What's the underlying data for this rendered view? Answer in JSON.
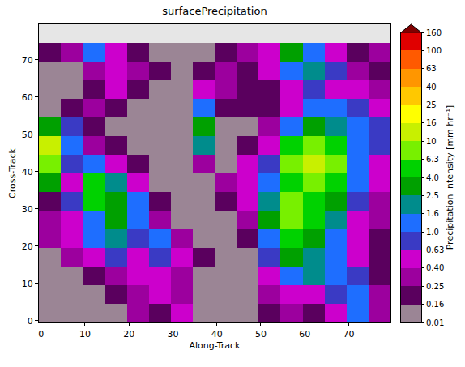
{
  "chart_data": {
    "type": "heatmap",
    "title": "surfacePrecipitation",
    "x_label": "Along-Track",
    "y_label": "Cross-Track",
    "x": [
      2,
      7,
      12,
      17,
      22,
      27,
      32,
      37,
      42,
      47,
      52,
      57,
      62,
      67,
      72,
      77
    ],
    "y": [
      2,
      7,
      12,
      17,
      22,
      27,
      32,
      37,
      42,
      47,
      52,
      57,
      62,
      67,
      72
    ],
    "z": [
      [
        0.05,
        0.05,
        0.05,
        0.05,
        0.3,
        0.2,
        0.5,
        0.05,
        0.05,
        0.05,
        0.2,
        0.3,
        0.2,
        0.5,
        1.2,
        0.3
      ],
      [
        0.05,
        0.05,
        0.05,
        0.2,
        0.3,
        0.5,
        0.3,
        0.05,
        0.05,
        0.05,
        0.3,
        0.5,
        0.5,
        0.8,
        1.2,
        0.3
      ],
      [
        0.05,
        0.05,
        0.2,
        0.3,
        0.5,
        0.5,
        0.3,
        0.05,
        0.05,
        0.05,
        0.5,
        1.2,
        2,
        1.2,
        0.8,
        0.2
      ],
      [
        0.05,
        0.3,
        0.5,
        0.8,
        0.5,
        0.8,
        0.5,
        0.2,
        0.05,
        0.05,
        0.8,
        3,
        2,
        1.2,
        0.5,
        0.2
      ],
      [
        0.3,
        0.5,
        1.2,
        2,
        0.8,
        1.2,
        0.3,
        0.05,
        0.05,
        0.2,
        1.2,
        5,
        3,
        1.2,
        0.5,
        0.2
      ],
      [
        0.3,
        0.5,
        1.2,
        3,
        1.2,
        0.3,
        0.05,
        0.05,
        0.05,
        0.3,
        3,
        8,
        5,
        2,
        0.5,
        0.3
      ],
      [
        0.2,
        0.8,
        5,
        3,
        1.2,
        0.2,
        0.05,
        0.05,
        0.2,
        0.5,
        2,
        8,
        5,
        3,
        0.8,
        0.3
      ],
      [
        3,
        0.5,
        5,
        2,
        0.5,
        0.05,
        0.05,
        0.05,
        0.3,
        0.5,
        1.2,
        5,
        8,
        5,
        1.2,
        0.5
      ],
      [
        8,
        0.8,
        1.2,
        0.5,
        0.2,
        0.05,
        0.05,
        0.3,
        0.05,
        0.5,
        0.8,
        8,
        12,
        8,
        1.2,
        0.5
      ],
      [
        12,
        1.2,
        0.3,
        0.2,
        0.05,
        0.05,
        0.05,
        2,
        0.05,
        0.2,
        0.5,
        5,
        8,
        5,
        1.2,
        0.8
      ],
      [
        3,
        0.8,
        0.2,
        0.05,
        0.05,
        0.05,
        0.05,
        3,
        0.05,
        0.05,
        0.3,
        1.2,
        3,
        2,
        1.2,
        0.8
      ],
      [
        0.05,
        0.2,
        0.3,
        0.2,
        0.05,
        0.05,
        0.05,
        1.2,
        0.2,
        0.2,
        0.2,
        0.5,
        1.2,
        1.2,
        0.8,
        0.5
      ],
      [
        0.05,
        0.05,
        0.2,
        0.5,
        0.2,
        0.05,
        0.05,
        0.5,
        0.3,
        0.2,
        0.2,
        0.5,
        0.8,
        0.5,
        0.5,
        0.3
      ],
      [
        0.05,
        0.05,
        0.3,
        0.5,
        0.3,
        0.2,
        0.05,
        0.2,
        0.3,
        0.2,
        0.5,
        1.2,
        2,
        0.8,
        0.3,
        0.2
      ],
      [
        0.2,
        0.3,
        1.2,
        0.5,
        0.2,
        0.05,
        0.05,
        0.05,
        0.2,
        0.3,
        0.5,
        3,
        1.2,
        0.5,
        0.2,
        0.3
      ]
    ],
    "xlim": [
      -0.5,
      79.5
    ],
    "ylim": [
      -0.5,
      79.5
    ],
    "xticks": [
      0,
      10,
      20,
      30,
      40,
      50,
      60,
      70
    ],
    "yticks": [
      0,
      10,
      20,
      30,
      40,
      50,
      60,
      70
    ],
    "grid": false,
    "colorbar": {
      "label": "Precipitation intensity [mm hr⁻¹]",
      "range": [
        0.01,
        160
      ],
      "ticks": [
        0.01,
        0.16,
        0.25,
        {
          "value": 0.4,
          "label": "0.40"
        },
        0.63,
        {
          "value": 1,
          "label": "1.0"
        },
        1.6,
        2.5,
        {
          "value": 4,
          "label": "4.0"
        },
        6.3,
        10,
        16,
        25,
        40,
        63,
        100,
        160
      ],
      "colors": [
        "#9b8595",
        "#5a005e",
        "#9c009e",
        "#cc00cc",
        "#3a3ac4",
        "#1e6eff",
        "#008c8c",
        "#00a000",
        "#00d200",
        "#78f000",
        "#c8f000",
        "#ffff00",
        "#ffc800",
        "#ff9600",
        "#ff5a00",
        "#e00000",
        "#800000"
      ]
    }
  }
}
